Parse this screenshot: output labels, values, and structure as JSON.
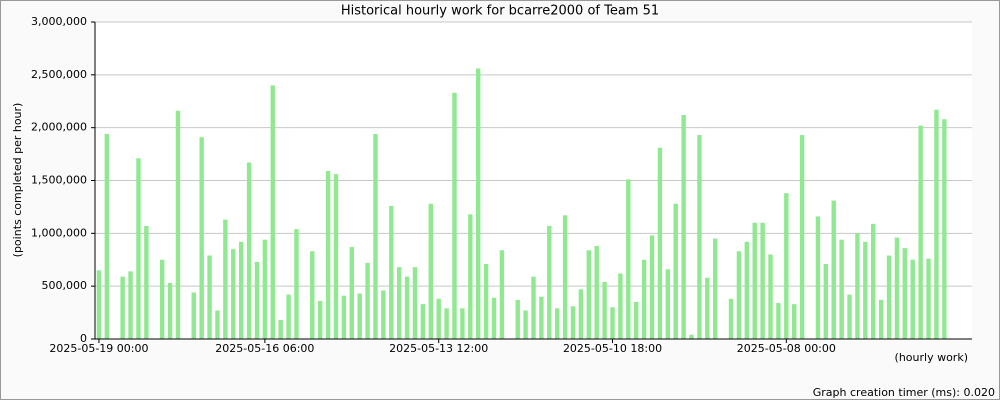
{
  "chart_data": {
    "type": "bar",
    "title": "Historical hourly work for bcarre2000 of Team 51",
    "y_label": "(points completed per hour)",
    "x_label": "(hourly work)",
    "footer": "Graph creation timer (ms): 0.020",
    "color": "#90e890",
    "grid": true,
    "ylim": [
      0,
      3000000
    ],
    "yticks": [
      {
        "value": 0,
        "label": "0"
      },
      {
        "value": 500000,
        "label": "500,000"
      },
      {
        "value": 1000000,
        "label": "1,000,000"
      },
      {
        "value": 1500000,
        "label": "1,500,000"
      },
      {
        "value": 2000000,
        "label": "2,000,000"
      },
      {
        "value": 2500000,
        "label": "2,500,000"
      },
      {
        "value": 3000000,
        "label": "3,000,000"
      }
    ],
    "categories": [
      "2025-05-19 00:00",
      null,
      null,
      null,
      null,
      null,
      null,
      null,
      null,
      null,
      null,
      null,
      null,
      null,
      null,
      null,
      null,
      null,
      null,
      null,
      null,
      "2025-05-16 06:00",
      null,
      null,
      null,
      null,
      null,
      null,
      null,
      null,
      null,
      null,
      null,
      null,
      null,
      null,
      null,
      null,
      null,
      null,
      null,
      null,
      null,
      "2025-05-13 12:00",
      null,
      null,
      null,
      null,
      null,
      null,
      null,
      null,
      null,
      null,
      null,
      null,
      null,
      null,
      null,
      null,
      null,
      null,
      null,
      null,
      null,
      "2025-05-10 18:00",
      null,
      null,
      null,
      null,
      null,
      null,
      null,
      null,
      null,
      null,
      null,
      null,
      null,
      null,
      null,
      null,
      null,
      null,
      null,
      null,
      null,
      "2025-05-08 00:00",
      null,
      null,
      null,
      null,
      null,
      null,
      null,
      null,
      null,
      null,
      null,
      null,
      null,
      null,
      null,
      null,
      null,
      null,
      null,
      null,
      null,
      null,
      null
    ],
    "values": [
      650000,
      1940000,
      null,
      590000,
      640000,
      1710000,
      1070000,
      null,
      750000,
      530000,
      2160000,
      null,
      440000,
      1910000,
      790000,
      270000,
      1130000,
      850000,
      920000,
      1670000,
      730000,
      940000,
      2400000,
      180000,
      420000,
      1040000,
      null,
      830000,
      360000,
      1590000,
      1560000,
      410000,
      870000,
      430000,
      720000,
      1940000,
      460000,
      1260000,
      680000,
      590000,
      680000,
      330000,
      1280000,
      380000,
      290000,
      2330000,
      290000,
      1180000,
      2560000,
      710000,
      390000,
      840000,
      null,
      370000,
      270000,
      590000,
      400000,
      1070000,
      290000,
      1170000,
      310000,
      470000,
      840000,
      880000,
      540000,
      300000,
      620000,
      1510000,
      350000,
      750000,
      980000,
      1810000,
      660000,
      1280000,
      2120000,
      40000,
      1930000,
      580000,
      950000,
      null,
      380000,
      830000,
      920000,
      1100000,
      1100000,
      800000,
      340000,
      1380000,
      330000,
      1930000,
      null,
      1160000,
      710000,
      1310000,
      940000,
      420000,
      1000000,
      920000,
      1090000,
      370000,
      790000,
      960000,
      860000,
      750000,
      2020000,
      760000,
      2170000,
      2080000,
      null,
      null,
      null
    ]
  }
}
